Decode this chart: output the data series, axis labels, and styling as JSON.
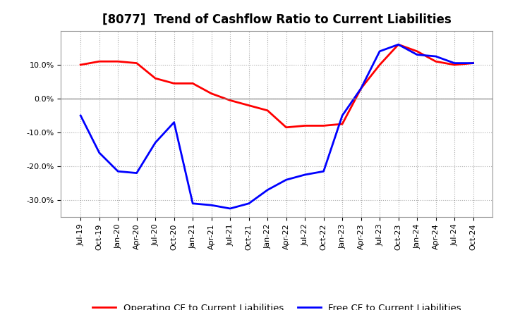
{
  "title": "[8077]  Trend of Cashflow Ratio to Current Liabilities",
  "x_labels": [
    "Jul-19",
    "Oct-19",
    "Jan-20",
    "Apr-20",
    "Jul-20",
    "Oct-20",
    "Jan-21",
    "Apr-21",
    "Jul-21",
    "Oct-21",
    "Jan-22",
    "Apr-22",
    "Jul-22",
    "Oct-22",
    "Jan-23",
    "Apr-23",
    "Jul-23",
    "Oct-23",
    "Jan-24",
    "Apr-24",
    "Jul-24",
    "Oct-24"
  ],
  "operating_cf": [
    10.0,
    11.0,
    11.0,
    10.5,
    6.0,
    4.5,
    4.5,
    1.5,
    -0.5,
    -2.0,
    -3.5,
    -8.5,
    -8.0,
    -8.0,
    -7.5,
    3.0,
    10.0,
    16.0,
    14.0,
    11.0,
    10.0,
    10.5
  ],
  "free_cf": [
    -5.0,
    -16.0,
    -21.5,
    -22.0,
    -13.0,
    -7.0,
    -31.0,
    -31.5,
    -32.5,
    -31.0,
    -27.0,
    -24.0,
    -22.5,
    -21.5,
    -5.0,
    3.0,
    14.0,
    16.0,
    13.0,
    12.5,
    10.5,
    10.5
  ],
  "operating_color": "#ff0000",
  "free_color": "#0000ff",
  "ylim": [
    -35,
    20
  ],
  "yticks": [
    -30,
    -20,
    -10,
    0,
    10
  ],
  "background_color": "#ffffff",
  "plot_bg_color": "#ffffff",
  "grid_color": "#aaaaaa",
  "title_fontsize": 12,
  "legend_fontsize": 9.5,
  "tick_fontsize": 8
}
